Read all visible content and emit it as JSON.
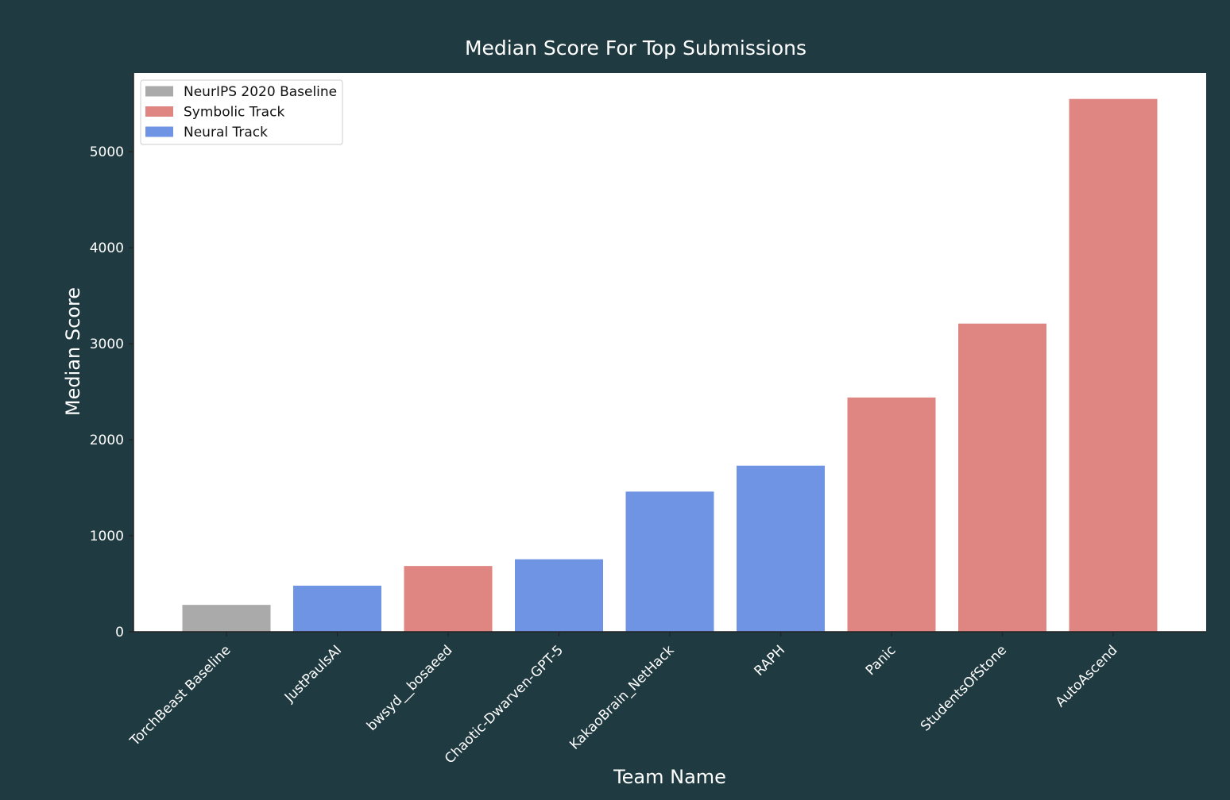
{
  "chart_data": {
    "type": "bar",
    "title": "Median Score For Top Submissions",
    "xlabel": "Team Name",
    "ylabel": "Median Score",
    "ylim": [
      0,
      5820
    ],
    "yticks": [
      0,
      1000,
      2000,
      3000,
      4000,
      5000
    ],
    "grid": false,
    "legend_position": "top-left",
    "categories": [
      "TorchBeast Baseline",
      "JustPaulsAI",
      "bwsyd__bosaeed",
      "Chaotic-Dwarven-GPT-5",
      "KakaoBrain_NetHack",
      "RAPH",
      "Panic",
      "StudentsOfStone",
      "AutoAscend"
    ],
    "values": [
      280,
      480,
      685,
      755,
      1460,
      1730,
      2440,
      3210,
      5550
    ],
    "groups": [
      "NeurIPS 2020 Baseline",
      "Neural Track",
      "Symbolic Track",
      "Neural Track",
      "Neural Track",
      "Neural Track",
      "Symbolic Track",
      "Symbolic Track",
      "Symbolic Track"
    ],
    "legend": [
      {
        "name": "NeurIPS 2020 Baseline",
        "color": "#aaaaaa"
      },
      {
        "name": "Symbolic Track",
        "color": "#e08682"
      },
      {
        "name": "Neural Track",
        "color": "#6f94e4"
      }
    ]
  },
  "colors": {
    "background": "#1f3a40",
    "plot_area": "#ffffff",
    "text": "#ffffff"
  }
}
